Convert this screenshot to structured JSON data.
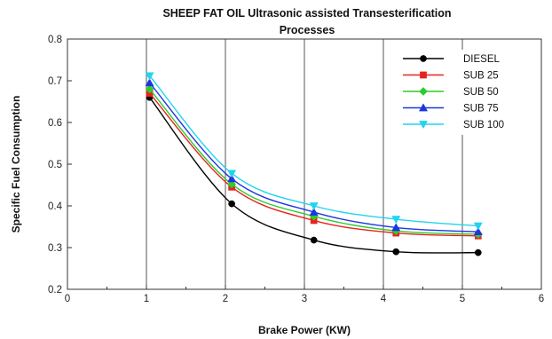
{
  "chart_data": {
    "type": "line",
    "title_line1": "SHEEP FAT OIL Ultrasonic assisted Transesterification",
    "title_line2": "Processes",
    "xlabel": "Brake Power (KW)",
    "ylabel": "Specific Fuel Consumption",
    "xlim": [
      0,
      6
    ],
    "ylim": [
      0.2,
      0.8
    ],
    "xticks": [
      "0",
      "1",
      "2",
      "3",
      "4",
      "5",
      "6"
    ],
    "yticks": [
      "0.2",
      "0.3",
      "0.4",
      "0.5",
      "0.6",
      "0.7",
      "0.8"
    ],
    "grid": "vertical",
    "legend_position": "top-right",
    "x": [
      1.04,
      2.08,
      3.12,
      4.16,
      5.2
    ],
    "series": [
      {
        "name": "DIESEL",
        "color": "#000000",
        "marker": "circle",
        "values": [
          0.66,
          0.405,
          0.318,
          0.29,
          0.288
        ]
      },
      {
        "name": "SUB 25",
        "color": "#e8231f",
        "marker": "square",
        "values": [
          0.67,
          0.445,
          0.365,
          0.335,
          0.328
        ]
      },
      {
        "name": "SUB 50",
        "color": "#2ecc2e",
        "marker": "diamond",
        "values": [
          0.68,
          0.452,
          0.375,
          0.34,
          0.332
        ]
      },
      {
        "name": "SUB 75",
        "color": "#1f35e0",
        "marker": "triangle",
        "values": [
          0.695,
          0.465,
          0.385,
          0.348,
          0.338
        ]
      },
      {
        "name": "SUB 100",
        "color": "#22d4f0",
        "marker": "triangle-down",
        "values": [
          0.712,
          0.478,
          0.4,
          0.368,
          0.352
        ]
      }
    ]
  }
}
